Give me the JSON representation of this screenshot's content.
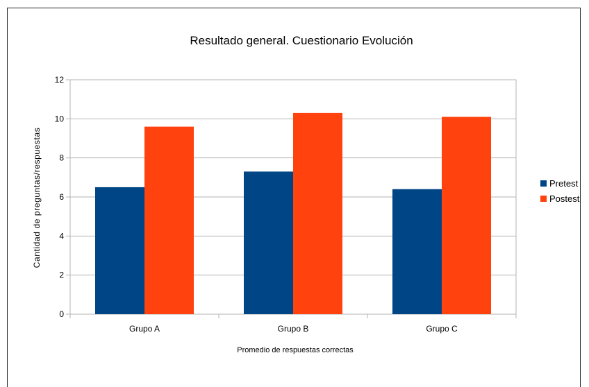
{
  "chart_data": {
    "type": "bar",
    "title": "Resultado general. Cuestionario Evolución",
    "xlabel": "Promedio de respuestas correctas",
    "ylabel": "Cantidad  de  preguntas/respuestas",
    "categories": [
      "Grupo A",
      "Grupo B",
      "Grupo C"
    ],
    "series": [
      {
        "name": "Pretest",
        "values": [
          6.5,
          7.3,
          6.4
        ],
        "color": "#004586"
      },
      {
        "name": "Postest",
        "values": [
          9.6,
          10.3,
          10.1
        ],
        "color": "#ff420e"
      }
    ],
    "ylim": [
      0,
      12
    ],
    "yticks": [
      "0",
      "2",
      "4",
      "6",
      "8",
      "10",
      "12"
    ],
    "grid": true,
    "legend": "right"
  }
}
